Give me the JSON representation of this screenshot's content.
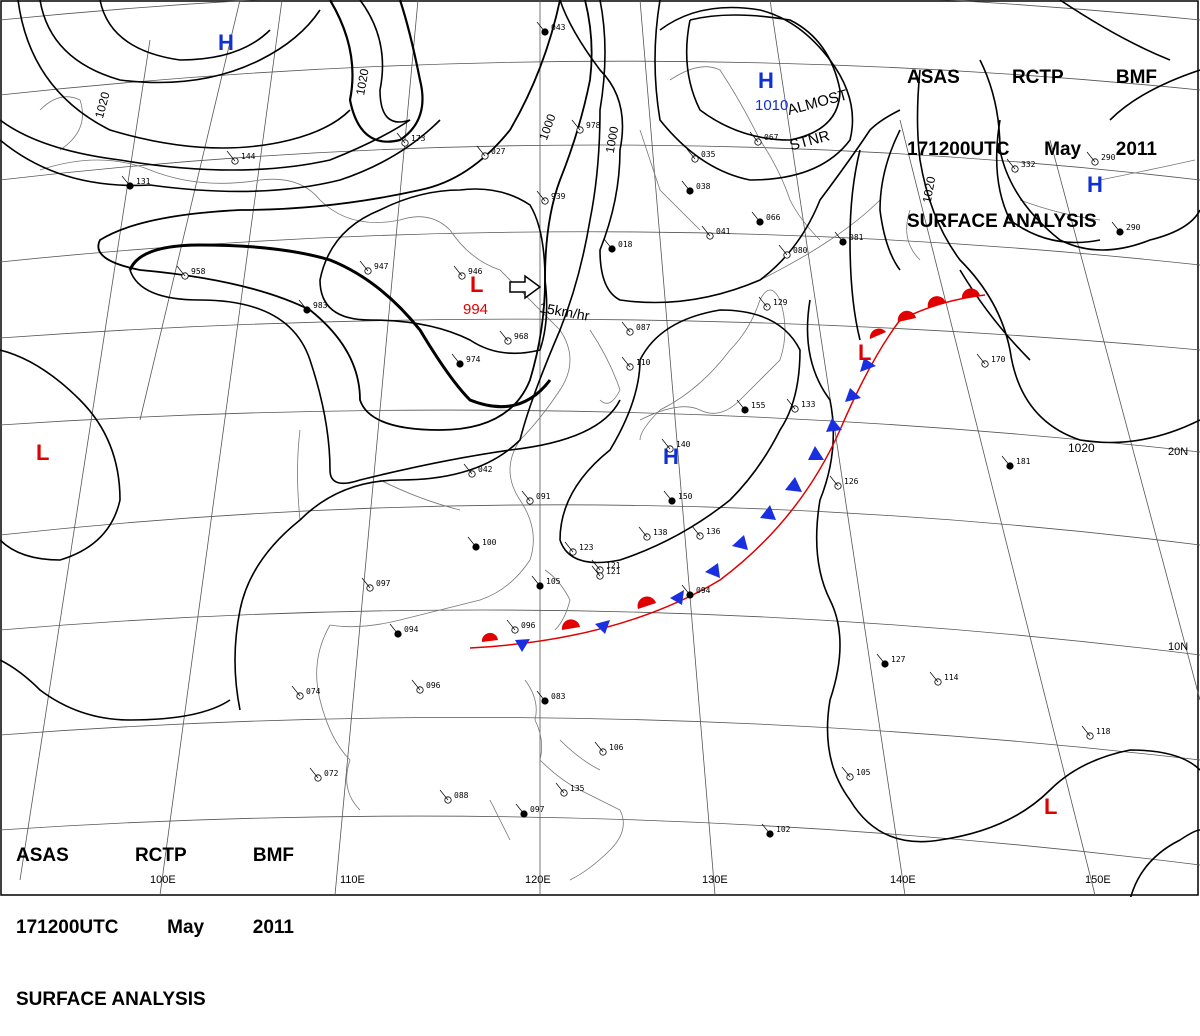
{
  "header_top": {
    "line1": [
      "ASAS",
      "RCTP",
      "BMF"
    ],
    "line2": [
      "171200UTC",
      "May",
      "2011"
    ],
    "line3": "SURFACE ANALYSIS"
  },
  "header_bottom": {
    "line1": [
      "ASAS",
      "RCTP",
      "BMF"
    ],
    "line2": [
      "171200UTC",
      "May",
      "2011"
    ],
    "line3": "SURFACE ANALYSIS"
  },
  "colors": {
    "high": "#1030d0",
    "low": "#e00000",
    "cold_front": "#1a2fe0",
    "warm_front": "#e00000",
    "frontal_line": "#e00000",
    "isobar": "#000000",
    "coast": "#777777",
    "grid": "#555555"
  },
  "pressure_systems": [
    {
      "type": "H",
      "value": "",
      "color": "#1030d0"
    },
    {
      "type": "H",
      "value": "1010",
      "color": "#1030d0"
    },
    {
      "type": "H",
      "value": "",
      "color": "#1030d0"
    },
    {
      "type": "L",
      "value": "994",
      "color": "#e00000"
    },
    {
      "type": "L",
      "value": "",
      "color": "#e00000"
    },
    {
      "type": "L",
      "value": "",
      "color": "#e00000"
    },
    {
      "type": "L",
      "value": "",
      "color": "#e00000"
    },
    {
      "type": "H",
      "value": "",
      "color": "#1030d0"
    }
  ],
  "isobar_labels": [
    "1020",
    "1020",
    "1000",
    "1000",
    "1020",
    "1020"
  ],
  "annotations": {
    "almost_stnr": [
      "ALMOST",
      "STNR"
    ],
    "movement": "15km/hr"
  },
  "lon_labels": [
    "100E",
    "110E",
    "120E",
    "130E",
    "140E",
    "150E"
  ],
  "lat_labels": [
    "20N",
    "10N"
  ],
  "stations": [
    "043",
    "978",
    "939",
    "018",
    "947",
    "946",
    "983",
    "968",
    "087",
    "974",
    "042",
    "091",
    "100",
    "123",
    "121",
    "105",
    "097",
    "096",
    "094",
    "074",
    "096",
    "083",
    "072",
    "088",
    "097",
    "135",
    "106",
    "150",
    "138",
    "136",
    "094",
    "140",
    "129",
    "066",
    "041",
    "035",
    "038",
    "067",
    "080",
    "081",
    "133",
    "126",
    "127",
    "114",
    "105",
    "102",
    "118",
    "170",
    "181",
    "332",
    "290",
    "290",
    "958",
    "110",
    "155",
    "173",
    "144",
    "131",
    "027",
    "121"
  ]
}
